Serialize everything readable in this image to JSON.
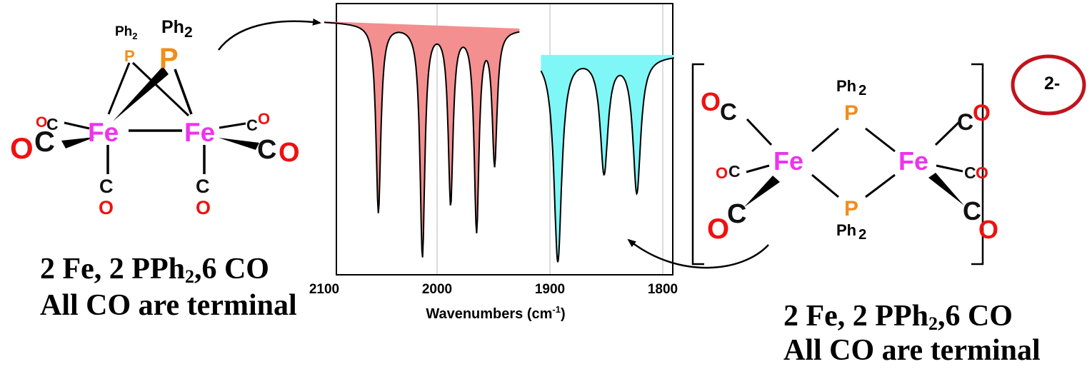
{
  "left_molecule": {
    "ph_small": "Ph",
    "ph_small_sub": "2",
    "ph_large": "Ph",
    "ph_large_sub": "2",
    "p": "P",
    "fe": "Fe",
    "o": "O",
    "c": "C",
    "caption_line1_prefix": "2 Fe, 2 PPh",
    "caption_line1_sub": "2",
    "caption_line1_suffix": ",6 CO",
    "caption_line2": "All CO are terminal"
  },
  "right_molecule": {
    "ph": "Ph",
    "ph_sub": "2",
    "p": "P",
    "fe": "Fe",
    "o": "O",
    "c": "C",
    "charge": "2-",
    "caption_line1_prefix": "2 Fe, 2 PPh",
    "caption_line1_sub": "2",
    "caption_line1_suffix": ",6 CO",
    "caption_line2": "All CO are terminal"
  },
  "colors": {
    "fe": "#ee33ee",
    "p": "#f28c1c",
    "o": "#ee1111",
    "c": "#111111",
    "peaks_left_fill": "#f48f8f",
    "peaks_right_fill": "#7ff7f7",
    "highlight_circle": "#c0141e"
  },
  "chart_data": {
    "type": "line",
    "xlabel": "Wavenumbers (cm",
    "xlabel_sup": "-1",
    "xlabel_close": ")",
    "x_ticks": [
      "2100",
      "2000",
      "1900",
      "1800"
    ],
    "xlim": [
      2100,
      1780
    ],
    "grid": true,
    "series": [
      {
        "peaks": [
          {
            "x": 2052,
            "depth": 0.82
          },
          {
            "x": 2013,
            "depth": 1.0
          },
          {
            "x": 1988,
            "depth": 0.76
          },
          {
            "x": 1965,
            "depth": 0.87
          },
          {
            "x": 1949,
            "depth": 0.58
          }
        ]
      },
      {
        "peaks": [
          {
            "x": 1893,
            "depth": 1.0
          },
          {
            "x": 1852,
            "depth": 0.56
          },
          {
            "x": 1823,
            "depth": 0.66
          }
        ]
      }
    ]
  }
}
